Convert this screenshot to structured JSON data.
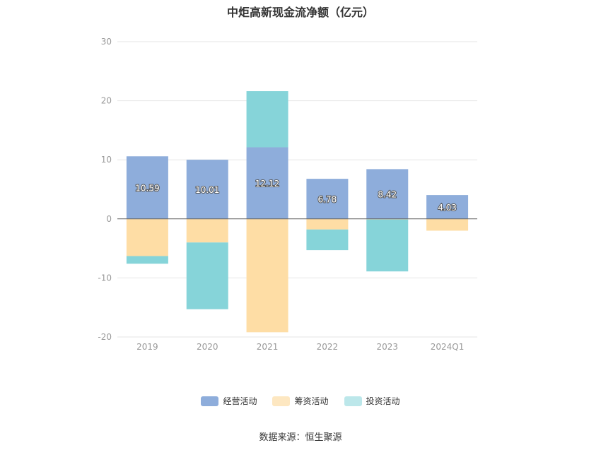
{
  "chart_data": {
    "type": "bar",
    "stacked": true,
    "title": "中炬高新现金流净额（亿元）",
    "categories": [
      "2019",
      "2020",
      "2021",
      "2022",
      "2023",
      "2024Q1"
    ],
    "series": [
      {
        "name": "经营活动",
        "color": "#8eaddb",
        "values": [
          10.59,
          10.01,
          12.12,
          6.78,
          8.42,
          4.03
        ],
        "labels": [
          "10.59",
          "10.01",
          "12.12",
          "6.78",
          "8.42",
          "4.03"
        ]
      },
      {
        "name": "筹资活动",
        "color": "#fedda5",
        "values": [
          -6.3,
          -4.0,
          -19.2,
          -1.8,
          -0.1,
          -2.0
        ]
      },
      {
        "name": "投资活动",
        "color": "#86d4d9",
        "values": [
          -1.3,
          -11.3,
          9.5,
          -3.5,
          -8.8,
          0
        ]
      }
    ],
    "yticks": [
      "30",
      "20",
      "10",
      "0",
      "-10",
      "-20"
    ],
    "ylim": [
      -20,
      30
    ],
    "grid": true,
    "legend_position": "bottom",
    "source": "数据来源：恒生聚源"
  }
}
